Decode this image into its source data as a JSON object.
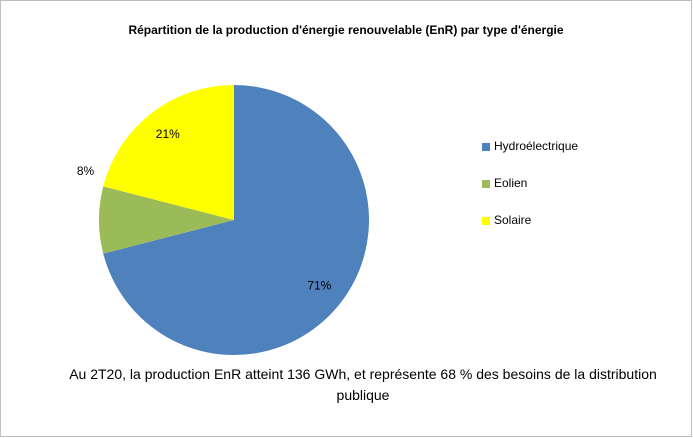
{
  "chart_data": {
    "type": "pie",
    "title": "Répartition de la production d'énergie renouvelable (EnR) par type d'énergie",
    "categories": [
      "Hydroélectrique",
      "Eolien",
      "Solaire"
    ],
    "values": [
      71,
      8,
      21
    ],
    "value_labels": [
      "71%",
      "8%",
      "21%"
    ],
    "colors": [
      "#4f81bd",
      "#9bbb59",
      "#ffff00"
    ],
    "legend": "right",
    "annotation": "Au 2T20, la production EnR atteint 136 GWh, et représente 68 % des besoins de la distribution publique"
  }
}
